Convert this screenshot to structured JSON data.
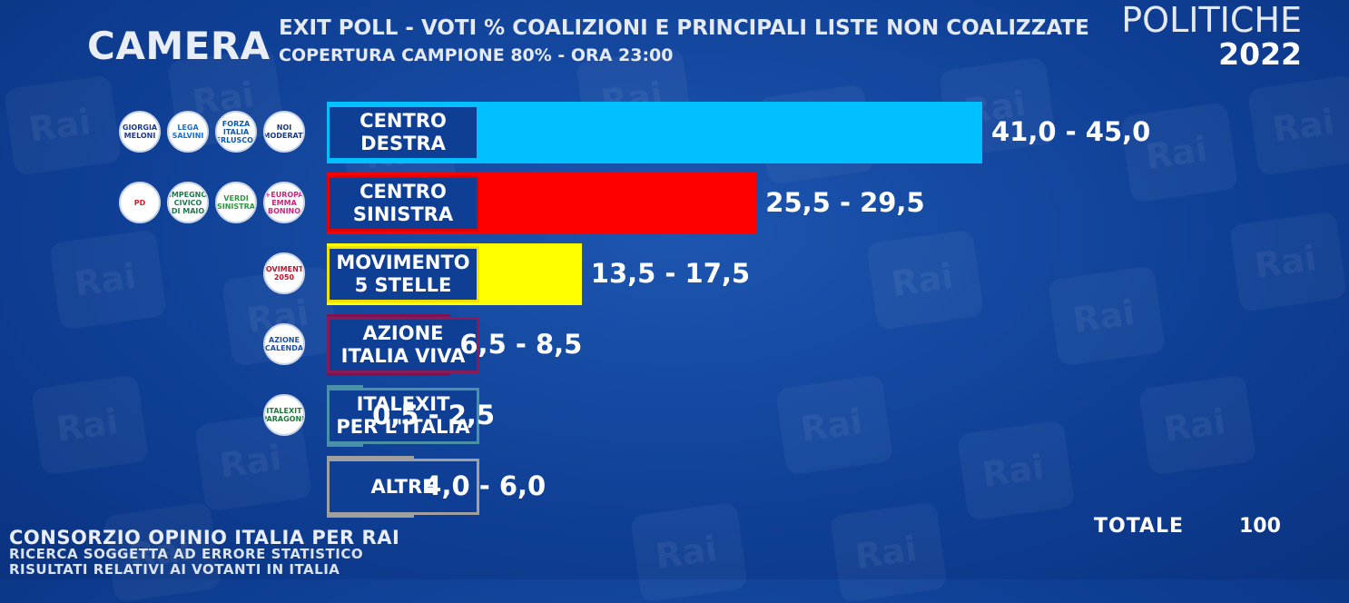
{
  "header": {
    "chamber": "CAMERA",
    "subtitle_line1": "EXIT POLL - VOTI % COALIZIONI E PRINCIPALI LISTE NON COALIZZATE",
    "subtitle_line2": "COPERTURA CAMPIONE 80% - ORA 23:00",
    "election": "POLITICHE",
    "year": "2022"
  },
  "chart_data": {
    "type": "bar",
    "orientation": "horizontal",
    "title": "EXIT POLL - VOTI % COALIZIONI E PRINCIPALI LISTE NON COALIZZATE",
    "categories": [
      "CENTRO DESTRA",
      "CENTRO SINISTRA",
      "MOVIMENTO 5 STELLE",
      "AZIONE ITALIA VIVA",
      "ITALEXIT PER L'ITALIA",
      "ALTRE"
    ],
    "rows": [
      {
        "line1": "CENTRO",
        "line2": "DESTRA",
        "low": 41.0,
        "high": 45.0,
        "range_label": "41,0 - 45,0",
        "color": "#00c0ff",
        "border": "#00c0ff",
        "logos": [
          {
            "text": "GIORGIA MELONI",
            "color": "#1b3a8c"
          },
          {
            "text": "LEGA SALVINI",
            "color": "#1b6fd1"
          },
          {
            "text": "FORZA ITALIA BERLUSCONI",
            "color": "#0a58b0"
          },
          {
            "text": "NOI MODERATI",
            "color": "#1a3b80"
          }
        ]
      },
      {
        "line1": "CENTRO",
        "line2": "SINISTRA",
        "low": 25.5,
        "high": 29.5,
        "range_label": "25,5 - 29,5",
        "color": "#ff0000",
        "border": "#e00000",
        "logos": [
          {
            "text": "PD",
            "color": "#d61f26"
          },
          {
            "text": "IMPEGNO CIVICO DI MAIO",
            "color": "#1f7a4d"
          },
          {
            "text": "VERDI SINISTRA",
            "color": "#2e9a3d"
          },
          {
            "text": "+EUROPA EMMA BONINO",
            "color": "#d0237e"
          }
        ]
      },
      {
        "line1": "MOVIMENTO",
        "line2": "5 STELLE",
        "low": 13.5,
        "high": 17.5,
        "range_label": "13,5 - 17,5",
        "color": "#ffff00",
        "border": "#f2e000",
        "logos": [
          {
            "text": "MOVIMENTO 2050",
            "color": "#c8102e"
          }
        ]
      },
      {
        "line1": "AZIONE",
        "line2": "ITALIA VIVA",
        "low": 6.5,
        "high": 8.5,
        "range_label": "6,5 - 8,5",
        "color": "#7d1350",
        "border": "#8a1a58",
        "logos": [
          {
            "text": "AZIONE CALENDA",
            "color": "#1c4ea0"
          }
        ]
      },
      {
        "line1": "ITALEXIT",
        "line2": "PER L'ITALIA",
        "low": 0.5,
        "high": 2.5,
        "range_label": "0,5 - 2,5",
        "color": "#4a90a8",
        "border": "#4a90a8",
        "logos": [
          {
            "text": "ITALEXIT PARAGONE",
            "color": "#1a7a3a"
          }
        ]
      },
      {
        "line1": "ALTRE",
        "line2": "",
        "low": 4.0,
        "high": 6.0,
        "range_label": "4,0 - 6,0",
        "color": "#a0a0a0",
        "border": "#a0a0a0",
        "logos": []
      }
    ],
    "x_unit": "%",
    "total_label": "TOTALE",
    "total_value": "100"
  },
  "footer": {
    "source": "CONSORZIO OPINIO ITALIA PER RAI",
    "note1": "RICERCA SOGGETTA AD ERRORE STATISTICO",
    "note2": "RISULTATI RELATIVI AI VOTANTI IN ITALIA"
  },
  "watermark": "Rai"
}
